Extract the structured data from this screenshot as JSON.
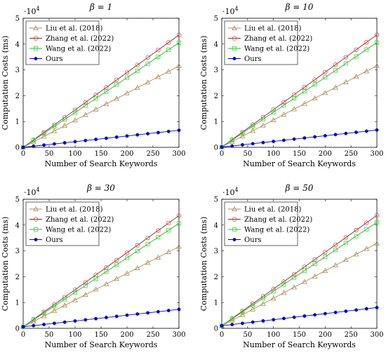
{
  "chart_data": [
    {
      "type": "line",
      "title": "β = 1",
      "exponent_label": "·10",
      "exponent_power": "4",
      "xlabel": "Number of Search Keywords",
      "ylabel": "Computation Costs (ms)",
      "xlim": [
        0,
        300
      ],
      "ylim": [
        0,
        50000
      ],
      "xticks": [
        0,
        50,
        100,
        150,
        200,
        250,
        300
      ],
      "yticks": [
        0,
        10000,
        20000,
        30000,
        40000,
        50000
      ],
      "ytick_labels": [
        "0",
        "1",
        "2",
        "3",
        "4",
        "5"
      ],
      "legend_position": "top-left",
      "grid": false,
      "x": [
        0,
        20,
        40,
        60,
        80,
        100,
        120,
        140,
        160,
        180,
        200,
        220,
        240,
        260,
        280,
        300
      ],
      "series": [
        {
          "name": "Liu et al. (2018)",
          "marker": "triangle",
          "color": "#b08a5a",
          "values": [
            0,
            2100,
            4200,
            6300,
            8400,
            10500,
            12600,
            14700,
            16800,
            18900,
            21000,
            23100,
            25200,
            27300,
            29400,
            31500
          ]
        },
        {
          "name": "Zhang et al. (2022)",
          "marker": "circle",
          "color": "#e05050",
          "line_color": "#7a2a2a",
          "values": [
            0,
            2900,
            5800,
            8700,
            11600,
            14500,
            17400,
            20300,
            23200,
            26100,
            29000,
            31900,
            34800,
            37700,
            40600,
            43500
          ]
        },
        {
          "name": "Wang et al. (2022)",
          "marker": "square",
          "color": "#33dd33",
          "line_color": "#33aa33",
          "values": [
            0,
            2700,
            5400,
            8100,
            10800,
            13500,
            16200,
            18900,
            21600,
            24300,
            27000,
            29700,
            32400,
            35100,
            37800,
            40500
          ]
        },
        {
          "name": "Ours",
          "marker": "dot",
          "color": "#0000cc",
          "values": [
            0,
            440,
            880,
            1320,
            1760,
            2200,
            2640,
            3080,
            3520,
            3960,
            4400,
            4840,
            5280,
            5720,
            6160,
            6600
          ]
        }
      ]
    },
    {
      "type": "line",
      "title": "β = 10",
      "exponent_label": "·10",
      "exponent_power": "4",
      "xlabel": "Number of Search Keywords",
      "ylabel": "Computation Costs (ms)",
      "xlim": [
        0,
        300
      ],
      "ylim": [
        0,
        50000
      ],
      "xticks": [
        0,
        50,
        100,
        150,
        200,
        250,
        300
      ],
      "yticks": [
        0,
        10000,
        20000,
        30000,
        40000,
        50000
      ],
      "ytick_labels": [
        "0",
        "1",
        "2",
        "3",
        "4",
        "5"
      ],
      "legend_position": "top-left",
      "grid": false,
      "x": [
        0,
        20,
        40,
        60,
        80,
        100,
        120,
        140,
        160,
        180,
        200,
        220,
        240,
        260,
        280,
        300
      ],
      "series": [
        {
          "name": "Liu et al. (2018)",
          "marker": "triangle",
          "color": "#b08a5a",
          "values": [
            100,
            2200,
            4300,
            6400,
            8500,
            10600,
            12700,
            14800,
            16900,
            19000,
            21100,
            23200,
            25300,
            27400,
            29500,
            31600
          ]
        },
        {
          "name": "Zhang et al. (2022)",
          "marker": "circle",
          "color": "#e05050",
          "line_color": "#7a2a2a",
          "values": [
            100,
            3000,
            5900,
            8800,
            11700,
            14600,
            17500,
            20400,
            23300,
            26200,
            29100,
            32000,
            34900,
            37800,
            40700,
            43600
          ]
        },
        {
          "name": "Wang et al. (2022)",
          "marker": "square",
          "color": "#33dd33",
          "line_color": "#33aa33",
          "values": [
            100,
            2800,
            5500,
            8200,
            10900,
            13600,
            16300,
            19000,
            21700,
            24400,
            27100,
            29800,
            32500,
            35200,
            37900,
            40600
          ]
        },
        {
          "name": "Ours",
          "marker": "dot",
          "color": "#0000cc",
          "values": [
            100,
            540,
            980,
            1420,
            1860,
            2300,
            2740,
            3180,
            3620,
            4060,
            4500,
            4940,
            5380,
            5820,
            6260,
            6700
          ]
        }
      ]
    },
    {
      "type": "line",
      "title": "β = 30",
      "exponent_label": "·10",
      "exponent_power": "4",
      "xlabel": "Number of Search Keywords",
      "ylabel": "Computation Costs (ms)",
      "xlim": [
        0,
        300
      ],
      "ylim": [
        0,
        50000
      ],
      "xticks": [
        0,
        50,
        100,
        150,
        200,
        250,
        300
      ],
      "yticks": [
        0,
        10000,
        20000,
        30000,
        40000,
        50000
      ],
      "ytick_labels": [
        "0",
        "1",
        "2",
        "3",
        "4",
        "5"
      ],
      "legend_position": "top-left",
      "grid": false,
      "x": [
        0,
        20,
        40,
        60,
        80,
        100,
        120,
        140,
        160,
        180,
        200,
        220,
        240,
        260,
        280,
        300
      ],
      "series": [
        {
          "name": "Liu et al. (2018)",
          "marker": "triangle",
          "color": "#b08a5a",
          "values": [
            600,
            2670,
            4740,
            6810,
            8880,
            10950,
            13020,
            15090,
            17160,
            19230,
            21300,
            23370,
            25440,
            27510,
            29580,
            31650
          ]
        },
        {
          "name": "Zhang et al. (2022)",
          "marker": "circle",
          "color": "#e05050",
          "line_color": "#7a2a2a",
          "values": [
            600,
            3470,
            6340,
            9210,
            12080,
            14950,
            17820,
            20690,
            23560,
            26430,
            29300,
            32170,
            35040,
            37910,
            40780,
            43650
          ]
        },
        {
          "name": "Wang et al. (2022)",
          "marker": "square",
          "color": "#33dd33",
          "line_color": "#33aa33",
          "values": [
            600,
            3270,
            5940,
            8610,
            11280,
            13950,
            16620,
            19290,
            21960,
            24630,
            27300,
            29970,
            32640,
            35310,
            37980,
            40650
          ]
        },
        {
          "name": "Ours",
          "marker": "dot",
          "color": "#0000cc",
          "values": [
            600,
            1050,
            1500,
            1950,
            2400,
            2850,
            3300,
            3750,
            4200,
            4650,
            5100,
            5550,
            6000,
            6450,
            6900,
            7350
          ]
        }
      ]
    },
    {
      "type": "line",
      "title": "β = 50",
      "exponent_label": "·10",
      "exponent_power": "4",
      "xlabel": "Number of Search Keywords",
      "ylabel": "Computation Costs (ms)",
      "xlim": [
        0,
        300
      ],
      "ylim": [
        0,
        50000
      ],
      "xticks": [
        0,
        50,
        100,
        150,
        200,
        250,
        300
      ],
      "yticks": [
        0,
        10000,
        20000,
        30000,
        40000,
        50000
      ],
      "ytick_labels": [
        "0",
        "1",
        "2",
        "3",
        "4",
        "5"
      ],
      "legend_position": "top-left",
      "grid": false,
      "x": [
        0,
        20,
        40,
        60,
        80,
        100,
        120,
        140,
        160,
        180,
        200,
        220,
        240,
        260,
        280,
        300
      ],
      "series": [
        {
          "name": "Liu et al. (2018)",
          "marker": "triangle",
          "color": "#b08a5a",
          "values": [
            1000,
            3130,
            5260,
            7390,
            9520,
            11650,
            13780,
            15910,
            18040,
            20170,
            22300,
            24430,
            26560,
            28690,
            30820,
            32950
          ]
        },
        {
          "name": "Zhang et al. (2022)",
          "marker": "circle",
          "color": "#e05050",
          "line_color": "#7a2a2a",
          "values": [
            1000,
            3850,
            6700,
            9550,
            12400,
            15250,
            18100,
            20950,
            23800,
            26650,
            29500,
            32350,
            35200,
            38050,
            40900,
            43750
          ]
        },
        {
          "name": "Wang et al. (2022)",
          "marker": "square",
          "color": "#33dd33",
          "line_color": "#33aa33",
          "values": [
            1000,
            3670,
            6340,
            9010,
            11680,
            14350,
            17020,
            19690,
            22360,
            25030,
            27700,
            30370,
            33040,
            35710,
            38380,
            41050
          ]
        },
        {
          "name": "Ours",
          "marker": "dot",
          "color": "#0000cc",
          "values": [
            1000,
            1470,
            1940,
            2410,
            2880,
            3350,
            3820,
            4290,
            4760,
            5230,
            5700,
            6170,
            6640,
            7110,
            7580,
            8050
          ]
        }
      ]
    }
  ]
}
